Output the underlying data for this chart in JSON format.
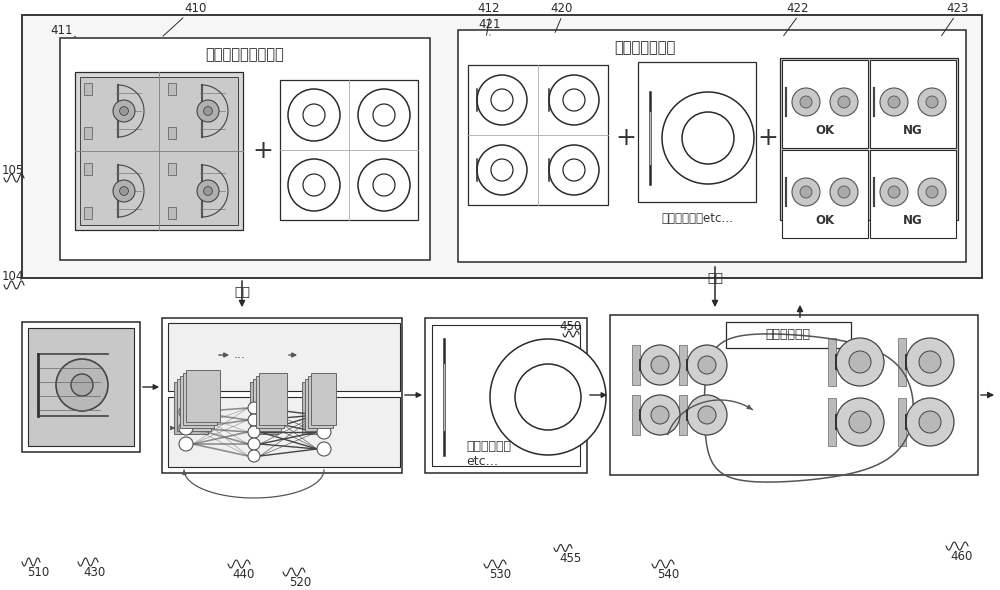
{
  "bg": "#ffffff",
  "lc": "#2a2a2a",
  "gc": "#888888",
  "fig_w": 10.0,
  "fig_h": 5.9,
  "dpi": 100,
  "labels": {
    "top_left_title": "区域检测的训练数据",
    "top_right_title": "判定的训练数据",
    "learn": "学习",
    "area_etc": "面积、角度、etc…",
    "area_etc_box": "面积、角度、\netc…",
    "normal_range": "正常判定范围",
    "n104": "104",
    "n105": "105",
    "n410": "410",
    "n411": "411",
    "n412": "412",
    "n420": "420",
    "n421": "421",
    "n422": "422",
    "n423": "423",
    "n430": "430",
    "n440": "440",
    "n450": "450",
    "n455": "455",
    "n460": "460",
    "n510": "510",
    "n520": "520",
    "n530": "530",
    "n540": "540",
    "OK": "OK",
    "NG": "NG"
  }
}
